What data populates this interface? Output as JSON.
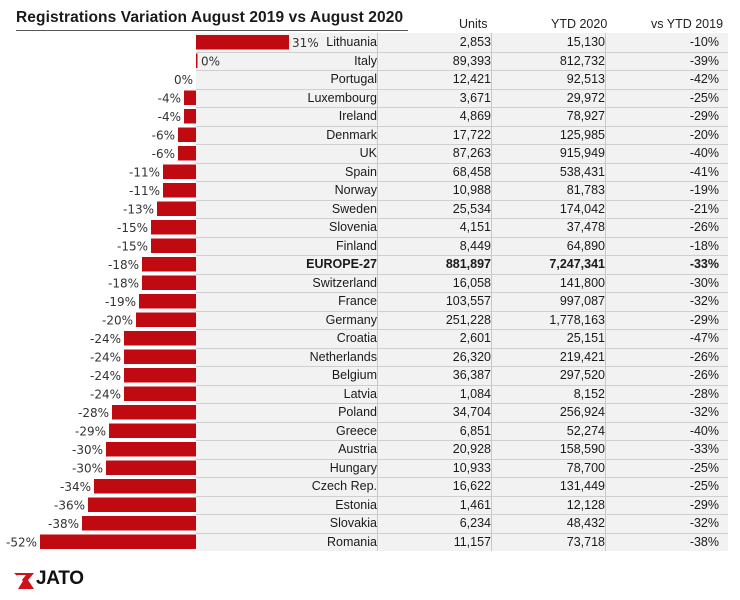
{
  "chart_data": {
    "type": "bar",
    "orientation": "horizontal",
    "title": "Registrations Variation August 2019 vs August 2020",
    "columns": [
      "Units",
      "YTD 2020",
      "vs YTD 2019"
    ],
    "bar_color": "#c00a12",
    "rows": [
      {
        "country": "Lithuania",
        "variation": 31,
        "label": "31%",
        "units": "2,853",
        "ytd": "15,130",
        "vs": "-10%"
      },
      {
        "country": "Italy",
        "variation": 0,
        "label": "0%",
        "units": "89,393",
        "ytd": "812,732",
        "vs": "-39%"
      },
      {
        "country": "Portugal",
        "variation": 0,
        "label": "0%",
        "units": "12,421",
        "ytd": "92,513",
        "vs": "-42%"
      },
      {
        "country": "Luxembourg",
        "variation": -4,
        "label": "-4%",
        "units": "3,671",
        "ytd": "29,972",
        "vs": "-25%"
      },
      {
        "country": "Ireland",
        "variation": -4,
        "label": "-4%",
        "units": "4,869",
        "ytd": "78,927",
        "vs": "-29%"
      },
      {
        "country": "Denmark",
        "variation": -6,
        "label": "-6%",
        "units": "17,722",
        "ytd": "125,985",
        "vs": "-20%"
      },
      {
        "country": "UK",
        "variation": -6,
        "label": "-6%",
        "units": "87,263",
        "ytd": "915,949",
        "vs": "-40%"
      },
      {
        "country": "Spain",
        "variation": -11,
        "label": "-11%",
        "units": "68,458",
        "ytd": "538,431",
        "vs": "-41%"
      },
      {
        "country": "Norway",
        "variation": -11,
        "label": "-11%",
        "units": "10,988",
        "ytd": "81,783",
        "vs": "-19%"
      },
      {
        "country": "Sweden",
        "variation": -13,
        "label": "-13%",
        "units": "25,534",
        "ytd": "174,042",
        "vs": "-21%"
      },
      {
        "country": "Slovenia",
        "variation": -15,
        "label": "-15%",
        "units": "4,151",
        "ytd": "37,478",
        "vs": "-26%"
      },
      {
        "country": "Finland",
        "variation": -15,
        "label": "-15%",
        "units": "8,449",
        "ytd": "64,890",
        "vs": "-18%"
      },
      {
        "country": "EUROPE-27",
        "variation": -18,
        "label": "-18%",
        "units": "881,897",
        "ytd": "7,247,341",
        "vs": "-33%",
        "bold": true
      },
      {
        "country": "Switzerland",
        "variation": -18,
        "label": "-18%",
        "units": "16,058",
        "ytd": "141,800",
        "vs": "-30%"
      },
      {
        "country": "France",
        "variation": -19,
        "label": "-19%",
        "units": "103,557",
        "ytd": "997,087",
        "vs": "-32%"
      },
      {
        "country": "Germany",
        "variation": -20,
        "label": "-20%",
        "units": "251,228",
        "ytd": "1,778,163",
        "vs": "-29%"
      },
      {
        "country": "Croatia",
        "variation": -24,
        "label": "-24%",
        "units": "2,601",
        "ytd": "25,151",
        "vs": "-47%"
      },
      {
        "country": "Netherlands",
        "variation": -24,
        "label": "-24%",
        "units": "26,320",
        "ytd": "219,421",
        "vs": "-26%"
      },
      {
        "country": "Belgium",
        "variation": -24,
        "label": "-24%",
        "units": "36,387",
        "ytd": "297,520",
        "vs": "-26%"
      },
      {
        "country": "Latvia",
        "variation": -24,
        "label": "-24%",
        "units": "1,084",
        "ytd": "8,152",
        "vs": "-28%"
      },
      {
        "country": "Poland",
        "variation": -28,
        "label": "-28%",
        "units": "34,704",
        "ytd": "256,924",
        "vs": "-32%"
      },
      {
        "country": "Greece",
        "variation": -29,
        "label": "-29%",
        "units": "6,851",
        "ytd": "52,274",
        "vs": "-40%"
      },
      {
        "country": "Austria",
        "variation": -30,
        "label": "-30%",
        "units": "20,928",
        "ytd": "158,590",
        "vs": "-33%"
      },
      {
        "country": "Hungary",
        "variation": -30,
        "label": "-30%",
        "units": "10,933",
        "ytd": "78,700",
        "vs": "-25%"
      },
      {
        "country": "Czech Rep.",
        "variation": -34,
        "label": "-34%",
        "units": "16,622",
        "ytd": "131,449",
        "vs": "-25%"
      },
      {
        "country": "Estonia",
        "variation": -36,
        "label": "-36%",
        "units": "1,461",
        "ytd": "12,128",
        "vs": "-29%"
      },
      {
        "country": "Slovakia",
        "variation": -38,
        "label": "-38%",
        "units": "6,234",
        "ytd": "48,432",
        "vs": "-32%"
      },
      {
        "country": "Romania",
        "variation": -52,
        "label": "-52%",
        "units": "11,157",
        "ytd": "73,718",
        "vs": "-38%"
      }
    ]
  },
  "brand": {
    "name": "JATO",
    "color": "#d0101a"
  }
}
